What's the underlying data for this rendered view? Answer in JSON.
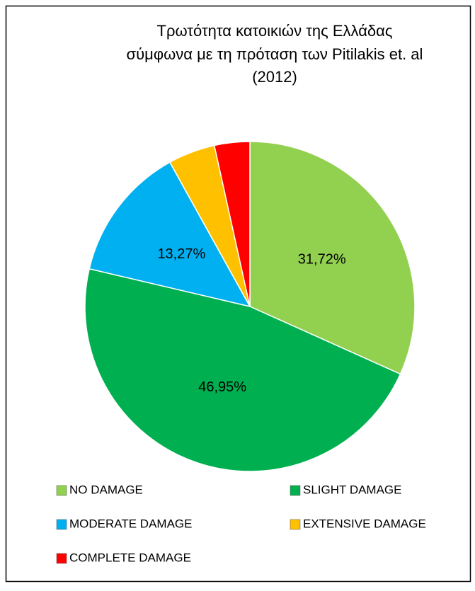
{
  "chart_data": {
    "type": "pie",
    "title": [
      "Τρωτότητα κατοικιών της Ελλάδας",
      "σύμφωνα με τη πρόταση των Pitilakis et. al",
      "(2012)"
    ],
    "categories": [
      "NO DAMAGE",
      "SLIGHT DAMAGE",
      "MODERATE DAMAGE",
      "EXTENSIVE DAMAGE",
      "COMPLETE DAMAGE"
    ],
    "values": [
      31.72,
      46.95,
      13.27,
      4.6,
      3.46
    ],
    "value_labels": [
      "31,72%",
      "46,95%",
      "13,27%",
      null,
      null
    ],
    "colors": [
      "#92d050",
      "#00b050",
      "#00b0f0",
      "#ffc000",
      "#ff0000"
    ],
    "legend": "bottom"
  }
}
